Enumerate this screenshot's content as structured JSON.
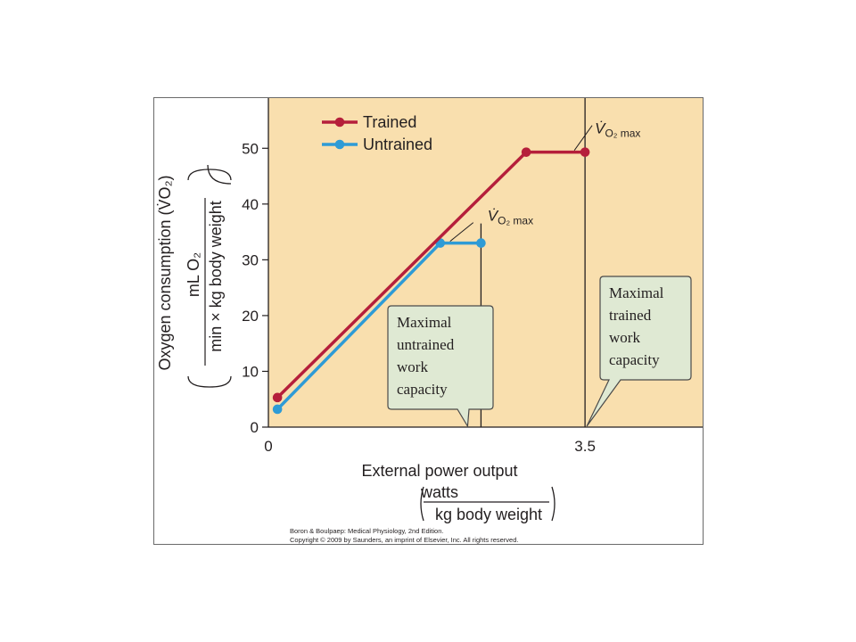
{
  "chart_data": {
    "type": "line",
    "x_axis": {
      "label": "External power output",
      "unit_numerator": "watts",
      "unit_denominator": "kg body weight",
      "ticks": [
        "0",
        "3.5"
      ],
      "range": [
        0,
        4.8
      ]
    },
    "y_axis": {
      "label": "Oxygen consumption (V̇O₂)",
      "unit_numerator": "mL O₂",
      "unit_denominator": "min × kg body weight",
      "ticks": [
        0,
        10,
        20,
        30,
        40,
        50
      ],
      "range": [
        0,
        59
      ]
    },
    "grid": false,
    "legend_position": "top-left",
    "series": [
      {
        "name": "Trained",
        "color": "#b51f3b",
        "points": [
          [
            0.1,
            5.3
          ],
          [
            2.85,
            49.3
          ],
          [
            3.5,
            49.3
          ]
        ]
      },
      {
        "name": "Untrained",
        "color": "#2e9bd6",
        "points": [
          [
            0.1,
            3.2
          ],
          [
            1.9,
            33.0
          ],
          [
            2.35,
            33.0
          ]
        ]
      }
    ],
    "annotations": {
      "vo2max_label": {
        "v": "V̇",
        "sub": "O₂ max"
      },
      "untrained_capacity_box": [
        "Maximal",
        "untrained",
        "work",
        "capacity"
      ],
      "trained_capacity_box": [
        "Maximal",
        "trained",
        "work",
        "capacity"
      ],
      "untrained_max_x": 2.35,
      "trained_max_x": 3.5
    },
    "credit": [
      "Boron & Boulpaep: Medical Physiology, 2nd Edition.",
      "Copyright © 2009 by Saunders, an imprint of Elsevier, Inc. All rights reserved."
    ]
  },
  "colors": {
    "plot_background": "#f9dfae",
    "callout_fill": "#dfe9d3",
    "axis_color": "#231f20"
  }
}
